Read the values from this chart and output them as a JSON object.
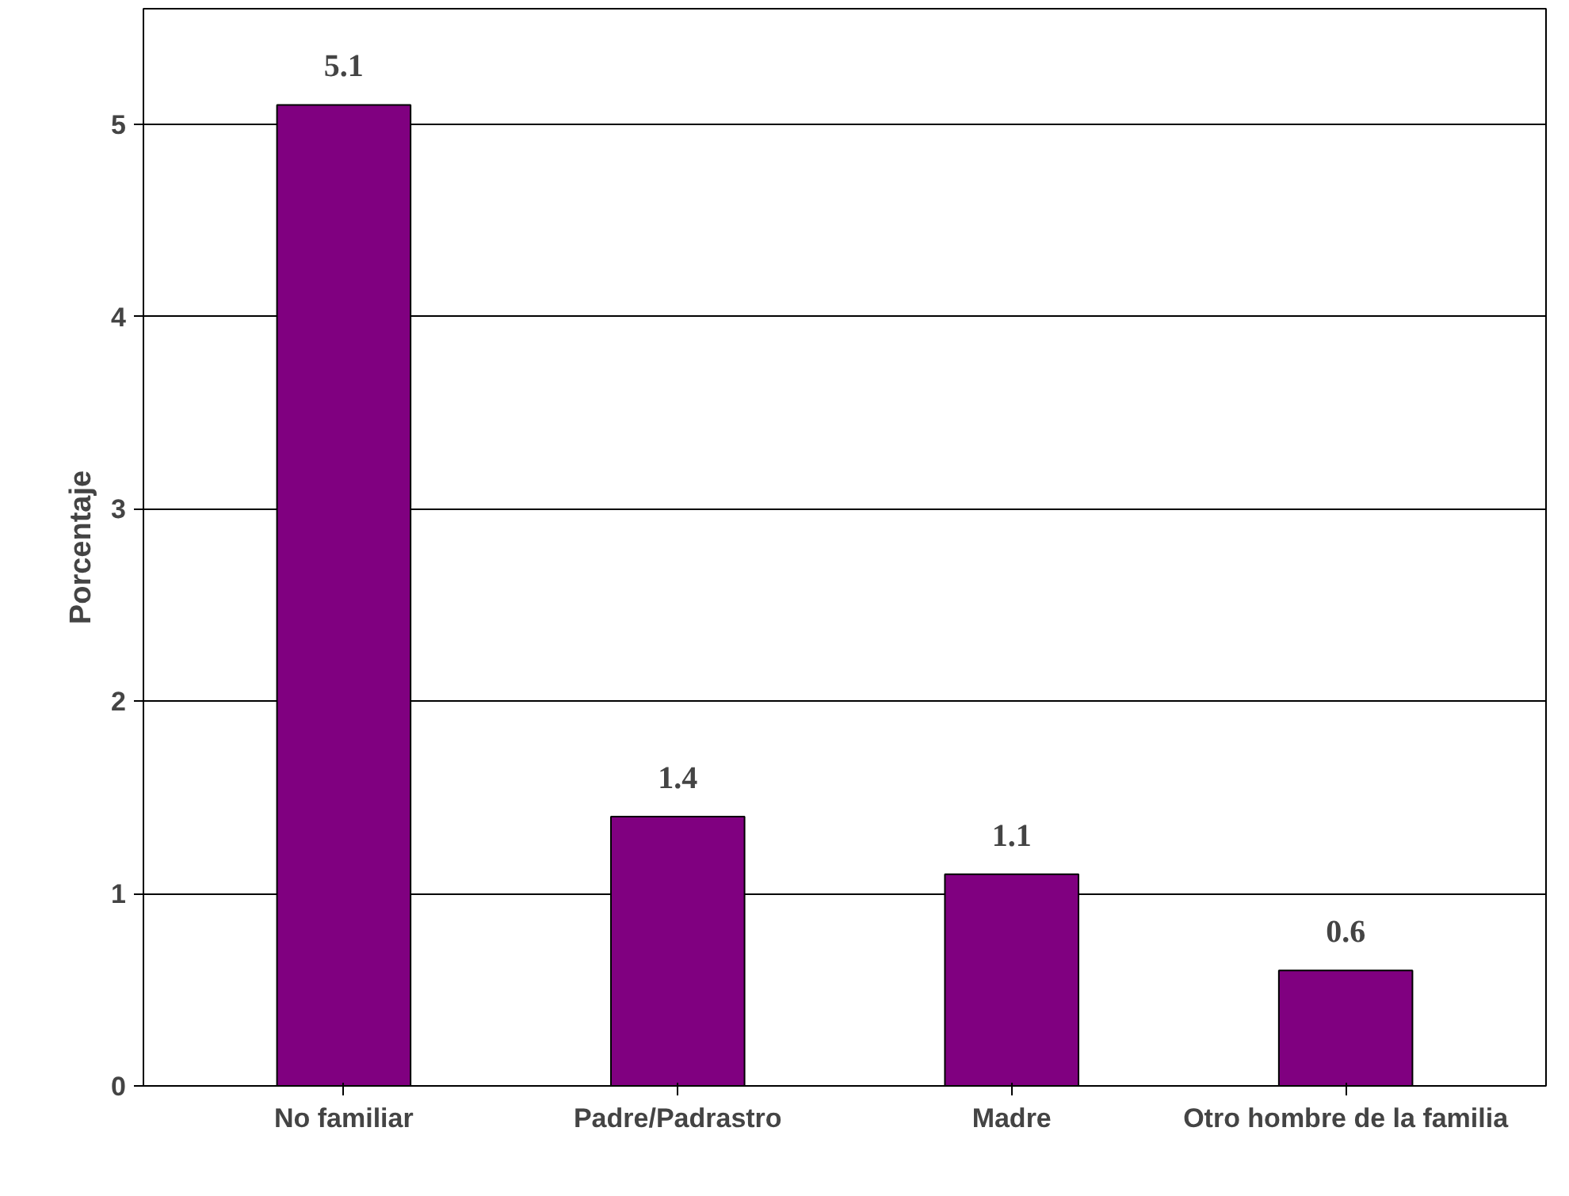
{
  "chart_data": {
    "type": "bar",
    "ylabel": "Porcentaje",
    "categories": [
      "No familiar",
      "Padre/Padrastro",
      "Madre",
      "Otro hombre de la familia"
    ],
    "values": [
      5.1,
      1.4,
      1.1,
      0.6
    ],
    "color": "#800080",
    "ylim": [
      0,
      5.6
    ],
    "yticks": [
      0,
      1,
      2,
      3,
      4,
      5
    ],
    "grid": "y",
    "data_labels": true
  }
}
